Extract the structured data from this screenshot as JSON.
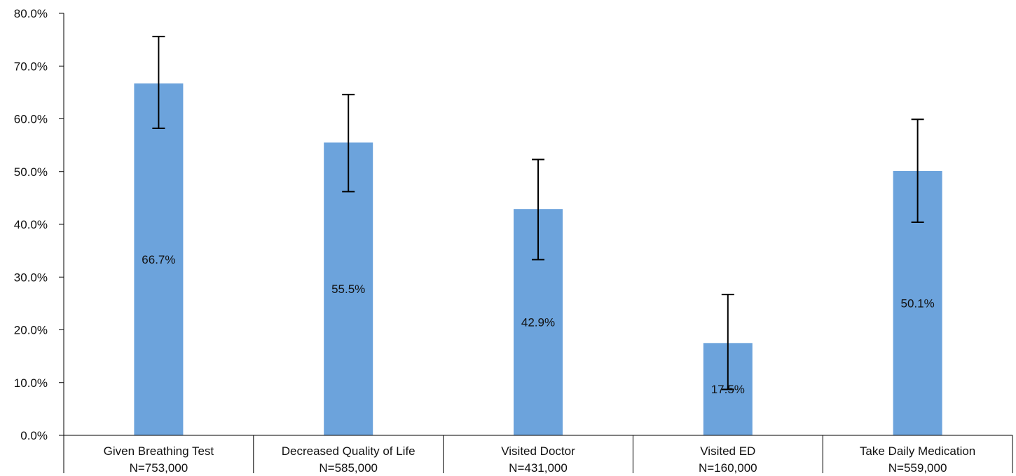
{
  "chart_data": {
    "type": "bar",
    "title": "",
    "xlabel": "",
    "ylabel": "",
    "categories": [
      "Given Breathing Test",
      "Decreased Quality of Life",
      "Visited Doctor",
      "Visited ED",
      "Take Daily Medication"
    ],
    "category_sublabels": [
      "N=753,000",
      "N=585,000",
      "N=431,000",
      "N=160,000",
      "N=559,000"
    ],
    "values": [
      66.7,
      55.5,
      42.9,
      17.5,
      50.1
    ],
    "value_labels": [
      "66.7%",
      "55.5%",
      "42.9%",
      "17.5%",
      "50.1%"
    ],
    "error_low": [
      58.2,
      46.2,
      33.3,
      8.7,
      40.4
    ],
    "error_high": [
      75.6,
      64.6,
      52.3,
      26.7,
      59.9
    ],
    "ylim": [
      0,
      80
    ],
    "yticks": [
      0,
      10,
      20,
      30,
      40,
      50,
      60,
      70,
      80
    ],
    "ytick_labels": [
      "0.0%",
      "10.0%",
      "20.0%",
      "30.0%",
      "40.0%",
      "50.0%",
      "60.0%",
      "70.0%",
      "80.0%"
    ],
    "bar_color": "#6ca3dc",
    "grid": false,
    "legend": "none"
  }
}
